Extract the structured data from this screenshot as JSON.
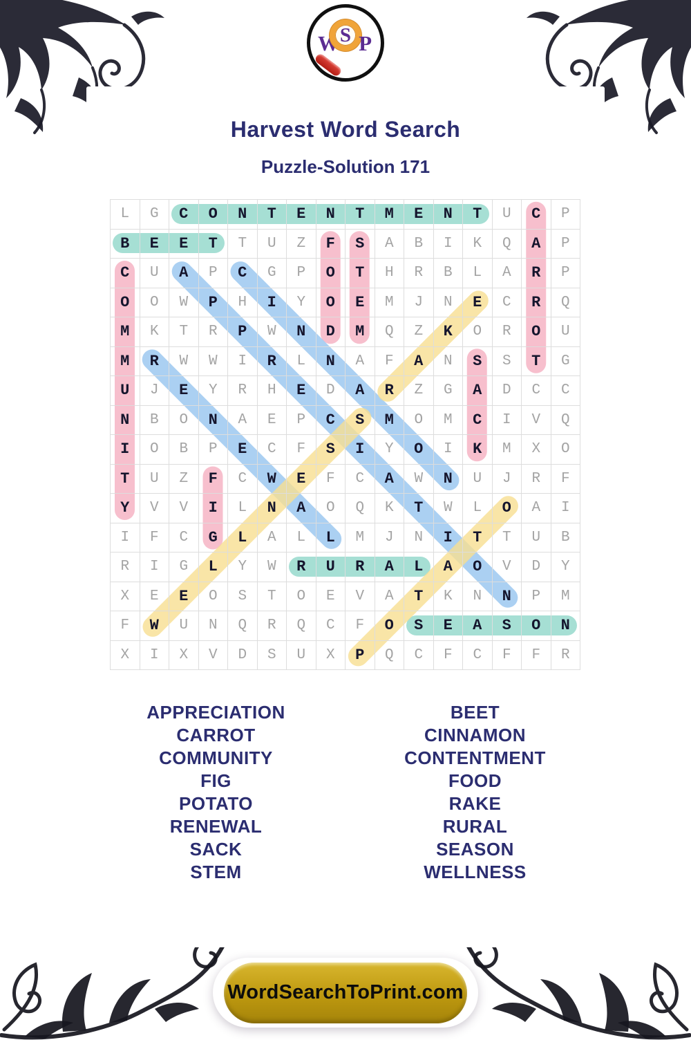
{
  "header": {
    "logo_letters": [
      "W",
      "S",
      "P"
    ],
    "title": "Harvest Word Search",
    "subtitle": "Puzzle-Solution 171"
  },
  "grid": {
    "size": 16,
    "rows": [
      "LGCONTENTMENTUCP",
      "BEETTUZFSABIKQAP",
      "CUAPCGPOTHRBLARP",
      "OOWPHIYOEMJNECRQ",
      "MKTRPWNDMQZKOROU",
      "MRWWIRLNAFANSSTG",
      "UJEYRHEDARZGADCC",
      "NBONAEPCSMOMCIVQ",
      "IOBPECFSIYOIKMXO",
      "TUZFCWEFCAWNUJRF",
      "YVVILNAOQKTWLOAI",
      "IFCGLALLMJNITTUB",
      "RIGLYWRURALAOVDY",
      "XEEOSTOEVATKNNPM",
      "FWUNQRQCFOSEASON",
      "XIXVDSUXPQCFCFFR"
    ]
  },
  "solution": {
    "placements": [
      {
        "word": "CONTENTMENT",
        "row": 0,
        "col": 2,
        "dr": 0,
        "dc": 1,
        "color": "teal"
      },
      {
        "word": "BEET",
        "row": 1,
        "col": 0,
        "dr": 0,
        "dc": 1,
        "color": "teal"
      },
      {
        "word": "RURAL",
        "row": 12,
        "col": 6,
        "dr": 0,
        "dc": 1,
        "color": "teal"
      },
      {
        "word": "SEASON",
        "row": 14,
        "col": 10,
        "dr": 0,
        "dc": 1,
        "color": "teal"
      },
      {
        "word": "CARROT",
        "row": 0,
        "col": 14,
        "dr": 1,
        "dc": 0,
        "color": "pink"
      },
      {
        "word": "COMMUNITY",
        "row": 2,
        "col": 0,
        "dr": 1,
        "dc": 0,
        "color": "pink"
      },
      {
        "word": "FOOD",
        "row": 1,
        "col": 7,
        "dr": 1,
        "dc": 0,
        "color": "pink"
      },
      {
        "word": "STEM",
        "row": 1,
        "col": 8,
        "dr": 1,
        "dc": 0,
        "color": "pink"
      },
      {
        "word": "SACK",
        "row": 5,
        "col": 12,
        "dr": 1,
        "dc": 0,
        "color": "pink"
      },
      {
        "word": "FIG",
        "row": 9,
        "col": 3,
        "dr": 1,
        "dc": 0,
        "color": "pink"
      },
      {
        "word": "APPRECIATION",
        "row": 2,
        "col": 2,
        "dr": 1,
        "dc": 1,
        "color": "blue"
      },
      {
        "word": "CINNAMON",
        "row": 2,
        "col": 4,
        "dr": 1,
        "dc": 1,
        "color": "blue"
      },
      {
        "word": "RENEWAL",
        "row": 5,
        "col": 1,
        "dr": 1,
        "dc": 1,
        "color": "blue"
      },
      {
        "word": "WELLNESS",
        "row": 14,
        "col": 1,
        "dr": -1,
        "dc": 1,
        "color": "yellow"
      },
      {
        "word": "RAKE",
        "row": 6,
        "col": 9,
        "dr": -1,
        "dc": 1,
        "color": "yellow"
      },
      {
        "word": "POTATO",
        "row": 15,
        "col": 8,
        "dr": -1,
        "dc": 1,
        "color": "yellow"
      }
    ]
  },
  "word_lists": {
    "left": [
      "APPRECIATION",
      "CARROT",
      "COMMUNITY",
      "FIG",
      "POTATO",
      "RENEWAL",
      "SACK",
      "STEM"
    ],
    "right": [
      "BEET",
      "CINNAMON",
      "CONTENTMENT",
      "FOOD",
      "RAKE",
      "RURAL",
      "SEASON",
      "WELLNESS"
    ]
  },
  "footer": {
    "site_label": "WordSearchToPrint.com"
  },
  "palette": {
    "teal": "rgba(150,217,205,0.85)",
    "pink": "rgba(246,180,196,0.85)",
    "blue": "rgba(156,200,240,0.85)",
    "yellow": "rgba(248,222,145,0.80)",
    "navy": "#2b2d70",
    "letter_dark": "#15152d",
    "letter_gray": "#a4a4a4",
    "button_gold": "#bd980f"
  }
}
